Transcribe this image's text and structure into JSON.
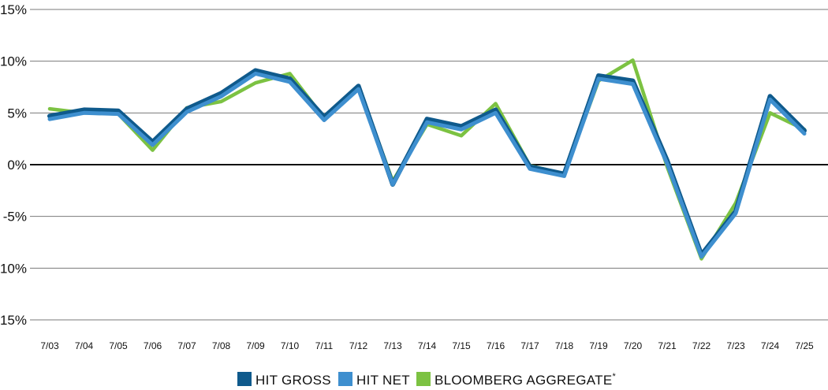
{
  "chart_data": {
    "type": "line",
    "categories": [
      "7/03",
      "7/04",
      "7/05",
      "7/06",
      "7/07",
      "7/08",
      "7/09",
      "7/10",
      "7/11",
      "7/12",
      "7/13",
      "7/14",
      "7/15",
      "7/16",
      "7/17",
      "7/18",
      "7/19",
      "7/20",
      "7/21",
      "7/22",
      "7/23",
      "7/24",
      "7/25"
    ],
    "ylim": [
      -15,
      15
    ],
    "y_ticks": [
      15,
      10,
      5,
      0,
      -5,
      -10,
      -15
    ],
    "y_tick_labels": [
      "15%",
      "10%",
      "5%",
      "0%",
      "-5%",
      "-10%",
      "-15%"
    ],
    "grid": "horizontal",
    "legend_position": "bottom",
    "series": [
      {
        "name": "HIT GROSS",
        "color": "#0f5a8c",
        "values": [
          4.7,
          5.3,
          5.2,
          2.2,
          5.4,
          6.9,
          9.1,
          8.3,
          4.6,
          7.6,
          -1.9,
          4.4,
          3.7,
          5.3,
          -0.2,
          -0.9,
          8.6,
          8.1,
          0.4,
          -8.7,
          -4.5,
          6.6,
          3.3
        ]
      },
      {
        "name": "HIT NET",
        "color": "#3e8fcf",
        "values": [
          4.4,
          5.0,
          4.9,
          1.9,
          5.1,
          6.6,
          8.8,
          8.0,
          4.3,
          7.3,
          -1.9,
          4.1,
          3.4,
          5.0,
          -0.4,
          -1.1,
          8.3,
          7.8,
          0.1,
          -8.9,
          -4.7,
          6.3,
          3.0
        ]
      },
      {
        "name": "BLOOMBERG AGGREGATE",
        "superscript": "*",
        "color": "#7cc242",
        "values": [
          5.4,
          5.0,
          4.9,
          1.4,
          5.5,
          6.1,
          7.9,
          8.8,
          4.5,
          7.5,
          -1.6,
          3.9,
          2.8,
          5.9,
          -0.1,
          -0.9,
          8.1,
          10.1,
          -0.2,
          -9.1,
          -3.7,
          5.0,
          3.4
        ]
      }
    ]
  }
}
